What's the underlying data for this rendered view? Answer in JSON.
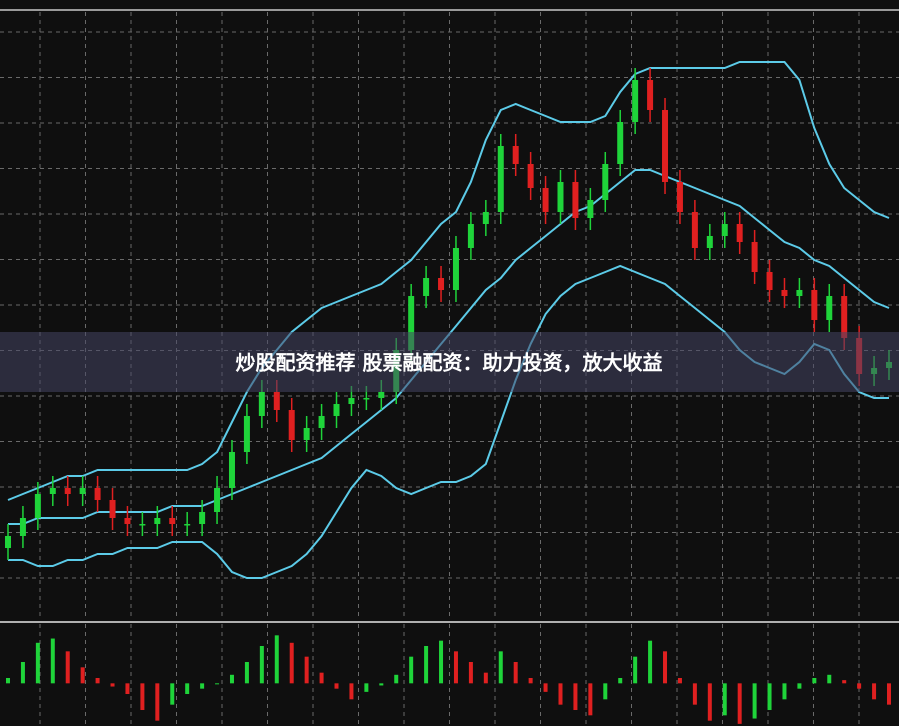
{
  "chart_data": {
    "type": "candlestick",
    "caption": "炒股配资推荐 股票融配资：助力投资，放大收益",
    "ylim": [
      0,
      100
    ],
    "up_color": "#1fd43a",
    "down_color": "#e02020",
    "band_color": "#5ccbe8",
    "open": [
      12,
      14,
      17,
      21,
      22,
      21,
      22,
      20,
      17,
      16,
      16,
      17,
      16,
      16,
      18,
      22,
      28,
      34,
      38,
      35,
      30,
      32,
      34,
      36,
      37,
      37,
      38,
      45,
      54,
      57,
      55,
      62,
      66,
      68,
      79,
      76,
      72,
      68,
      73,
      67,
      70,
      76,
      83,
      90,
      85,
      73,
      68,
      62,
      64,
      66,
      63,
      58,
      55,
      54,
      55,
      50,
      54,
      47,
      41,
      42
    ],
    "high": [
      16,
      19,
      23,
      24,
      24,
      24,
      24,
      22,
      19,
      18,
      19,
      19,
      18,
      20,
      24,
      30,
      36,
      40,
      40,
      37,
      34,
      36,
      38,
      39,
      39,
      40,
      47,
      56,
      59,
      59,
      64,
      68,
      70,
      81,
      81,
      78,
      74,
      75,
      75,
      72,
      78,
      85,
      92,
      92,
      87,
      75,
      70,
      66,
      68,
      68,
      65,
      60,
      57,
      57,
      57,
      56,
      56,
      49,
      44,
      45
    ],
    "low": [
      10,
      12,
      15,
      19,
      19,
      19,
      18,
      15,
      14,
      14,
      14,
      14,
      14,
      14,
      16,
      20,
      26,
      32,
      33,
      28,
      28,
      30,
      32,
      34,
      35,
      35,
      36,
      43,
      52,
      53,
      53,
      60,
      64,
      66,
      74,
      70,
      66,
      66,
      65,
      65,
      68,
      74,
      81,
      83,
      71,
      66,
      60,
      60,
      62,
      61,
      56,
      53,
      52,
      52,
      48,
      48,
      45,
      39,
      39,
      40
    ],
    "close": [
      14,
      17,
      21,
      22,
      21,
      22,
      20,
      17,
      16,
      16,
      17,
      16,
      16,
      18,
      22,
      28,
      34,
      38,
      35,
      30,
      32,
      34,
      36,
      37,
      37,
      38,
      45,
      54,
      57,
      55,
      62,
      66,
      68,
      79,
      76,
      72,
      68,
      73,
      67,
      70,
      76,
      83,
      90,
      85,
      73,
      68,
      62,
      64,
      66,
      63,
      58,
      55,
      54,
      55,
      50,
      54,
      47,
      41,
      42,
      43
    ],
    "bands": {
      "upper": [
        20,
        21,
        22,
        23,
        24,
        24,
        25,
        25,
        25,
        25,
        25,
        25,
        25,
        26,
        28,
        33,
        38,
        42,
        45,
        48,
        50,
        52,
        53,
        54,
        55,
        56,
        58,
        60,
        63,
        66,
        68,
        73,
        80,
        85,
        86,
        85,
        84,
        83,
        83,
        83,
        84,
        88,
        91,
        92,
        92,
        92,
        92,
        92,
        92,
        93,
        93,
        93,
        93,
        90,
        82,
        76,
        72,
        70,
        68,
        67
      ],
      "middle": [
        16,
        16,
        17,
        17,
        17,
        17,
        18,
        18,
        18,
        18,
        18,
        19,
        19,
        19,
        20,
        21,
        22,
        23,
        24,
        25,
        26,
        27,
        29,
        31,
        33,
        35,
        37,
        40,
        43,
        46,
        49,
        52,
        55,
        57,
        60,
        62,
        64,
        66,
        68,
        69,
        71,
        73,
        75,
        75,
        74,
        73,
        72,
        71,
        70,
        69,
        67,
        65,
        63,
        62,
        60,
        59,
        57,
        55,
        53,
        52
      ],
      "lower": [
        10,
        10,
        9,
        9,
        10,
        10,
        11,
        11,
        12,
        12,
        12,
        13,
        13,
        13,
        11,
        8,
        7,
        7,
        8,
        9,
        11,
        14,
        18,
        22,
        25,
        24,
        22,
        21,
        22,
        23,
        23,
        24,
        26,
        33,
        40,
        46,
        51,
        54,
        56,
        57,
        58,
        59,
        58,
        57,
        56,
        54,
        52,
        50,
        48,
        45,
        43,
        42,
        41,
        43,
        46,
        45,
        41,
        38,
        37,
        37
      ]
    },
    "histogram": {
      "ylim": [
        -40,
        50
      ],
      "values": [
        5,
        20,
        38,
        42,
        30,
        15,
        5,
        -3,
        -10,
        -25,
        -35,
        -20,
        -10,
        -5,
        0,
        8,
        20,
        35,
        45,
        38,
        25,
        10,
        -5,
        -15,
        -8,
        -2,
        8,
        25,
        35,
        40,
        30,
        20,
        10,
        30,
        20,
        5,
        -8,
        -20,
        -25,
        -30,
        -15,
        5,
        25,
        40,
        30,
        5,
        -20,
        -35,
        -30,
        -38,
        -33,
        -25,
        -15,
        -5,
        5,
        8,
        3,
        -5,
        -15,
        -20
      ]
    }
  }
}
